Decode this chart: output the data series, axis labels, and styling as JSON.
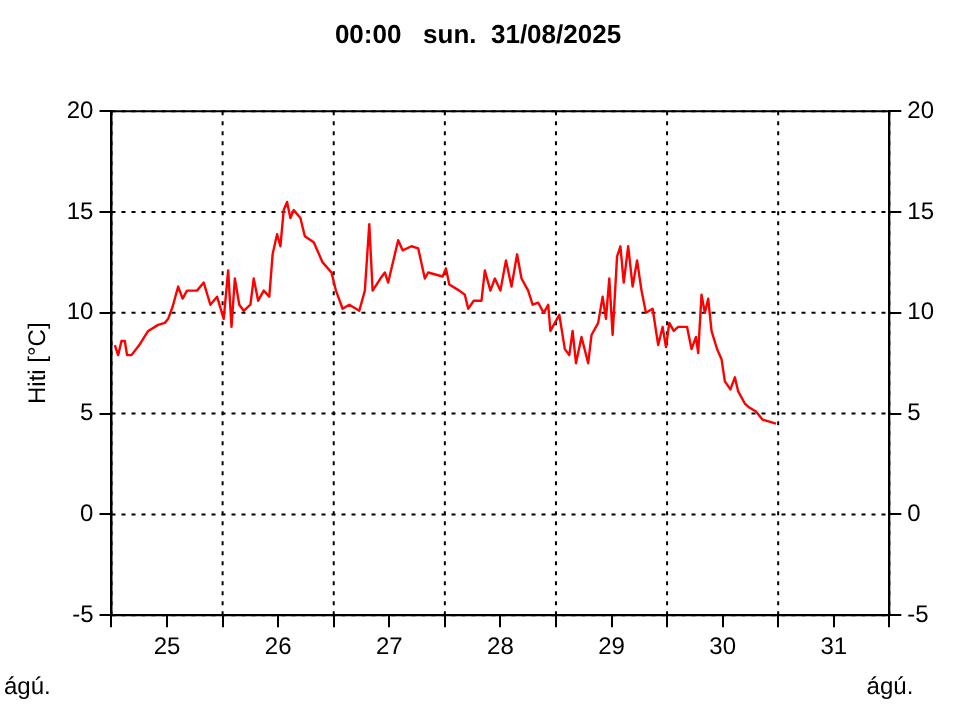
{
  "chart_data": {
    "type": "line",
    "title": "00:00   sun.  31/08/2025",
    "ylabel": "Hiti [°C]",
    "annotations": [
      "ágú.",
      "ágú."
    ],
    "x": [
      25.03,
      25.06,
      25.09,
      25.12,
      25.14,
      25.18,
      25.25,
      25.33,
      25.42,
      25.48,
      25.51,
      25.55,
      25.6,
      25.64,
      25.68,
      25.77,
      25.83,
      25.89,
      25.95,
      26.01,
      26.05,
      26.08,
      26.11,
      26.15,
      26.19,
      26.25,
      26.28,
      26.32,
      26.37,
      26.42,
      26.45,
      26.49,
      26.52,
      26.55,
      26.58,
      26.61,
      26.64,
      26.7,
      26.74,
      26.82,
      26.9,
      26.98,
      27.02,
      27.08,
      27.14,
      27.23,
      27.28,
      27.32,
      27.35,
      27.42,
      27.46,
      27.49,
      27.55,
      27.58,
      27.62,
      27.7,
      27.76,
      27.82,
      27.85,
      27.98,
      28.01,
      28.04,
      28.13,
      28.18,
      28.21,
      28.26,
      28.33,
      28.36,
      28.41,
      28.45,
      28.5,
      28.55,
      28.6,
      28.65,
      28.69,
      28.75,
      28.79,
      28.84,
      28.89,
      28.93,
      28.95,
      28.99,
      29.03,
      29.08,
      29.12,
      29.15,
      29.18,
      29.23,
      29.29,
      29.32,
      29.38,
      29.42,
      29.45,
      29.48,
      29.51,
      29.55,
      29.58,
      29.61,
      29.65,
      29.69,
      29.73,
      29.77,
      29.81,
      29.87,
      29.92,
      29.96,
      29.99,
      30.02,
      30.06,
      30.1,
      30.18,
      30.22,
      30.26,
      30.28,
      30.31,
      30.34,
      30.37,
      30.4,
      30.45,
      30.49,
      30.52,
      30.57,
      30.61,
      30.64,
      30.7,
      30.74,
      30.8,
      30.86,
      30.92,
      30.98
    ],
    "series": [
      {
        "color": "#ff0000",
        "values": [
          8.4,
          7.9,
          8.6,
          8.6,
          7.9,
          7.9,
          8.4,
          9.1,
          9.4,
          9.5,
          9.7,
          10.3,
          11.3,
          10.7,
          11.1,
          11.1,
          11.5,
          10.4,
          10.8,
          9.7,
          12.1,
          9.3,
          11.7,
          10.4,
          10.1,
          10.4,
          11.7,
          10.6,
          11.1,
          10.8,
          12.9,
          13.9,
          13.3,
          15.1,
          15.5,
          14.7,
          15.1,
          14.7,
          13.8,
          13.5,
          12.5,
          12.0,
          11.1,
          10.2,
          10.4,
          10.1,
          11.1,
          14.4,
          11.1,
          11.7,
          12.0,
          11.5,
          12.9,
          13.6,
          13.1,
          13.3,
          13.2,
          11.7,
          12.0,
          11.8,
          12.2,
          11.4,
          11.1,
          10.9,
          10.2,
          10.6,
          10.6,
          12.1,
          11.1,
          11.7,
          11.1,
          12.6,
          11.3,
          12.9,
          11.7,
          11.1,
          10.4,
          10.5,
          10.0,
          10.4,
          9.1,
          9.5,
          9.9,
          8.2,
          7.9,
          9.1,
          7.5,
          8.8,
          7.5,
          8.9,
          9.5,
          10.8,
          9.7,
          11.7,
          8.9,
          12.8,
          13.3,
          11.5,
          13.3,
          11.3,
          12.6,
          11.1,
          10.0,
          10.2,
          8.4,
          9.3,
          8.3,
          9.5,
          9.1,
          9.3,
          9.3,
          8.2,
          8.8,
          8.0,
          10.9,
          10.0,
          10.7,
          9.1,
          8.2,
          7.7,
          6.6,
          6.2,
          6.8,
          6.1,
          5.5,
          5.3,
          5.1,
          4.7,
          4.6,
          4.5
        ]
      }
    ],
    "xlim": [
      25,
      32
    ],
    "xticks": [
      {
        "value": 25,
        "label": null
      },
      {
        "value": 25.5,
        "label": "25"
      },
      {
        "value": 26,
        "label": null
      },
      {
        "value": 26.5,
        "label": "26"
      },
      {
        "value": 27,
        "label": null
      },
      {
        "value": 27.5,
        "label": "27"
      },
      {
        "value": 28,
        "label": null
      },
      {
        "value": 28.5,
        "label": "28"
      },
      {
        "value": 29,
        "label": null
      },
      {
        "value": 29.5,
        "label": "29"
      },
      {
        "value": 30,
        "label": null
      },
      {
        "value": 30.5,
        "label": "30"
      },
      {
        "value": 31,
        "label": null
      },
      {
        "value": 31.5,
        "label": "31"
      },
      {
        "value": 32,
        "label": null
      }
    ],
    "ylim": [
      -5,
      20
    ],
    "yticks": [
      -5,
      0,
      5,
      10,
      15,
      20
    ],
    "y2lim": [
      -5,
      20
    ],
    "y2ticks": [
      -5,
      0,
      5,
      10,
      15,
      20
    ],
    "grid": true,
    "legend": false,
    "marker": "none",
    "line_style": "solid"
  }
}
